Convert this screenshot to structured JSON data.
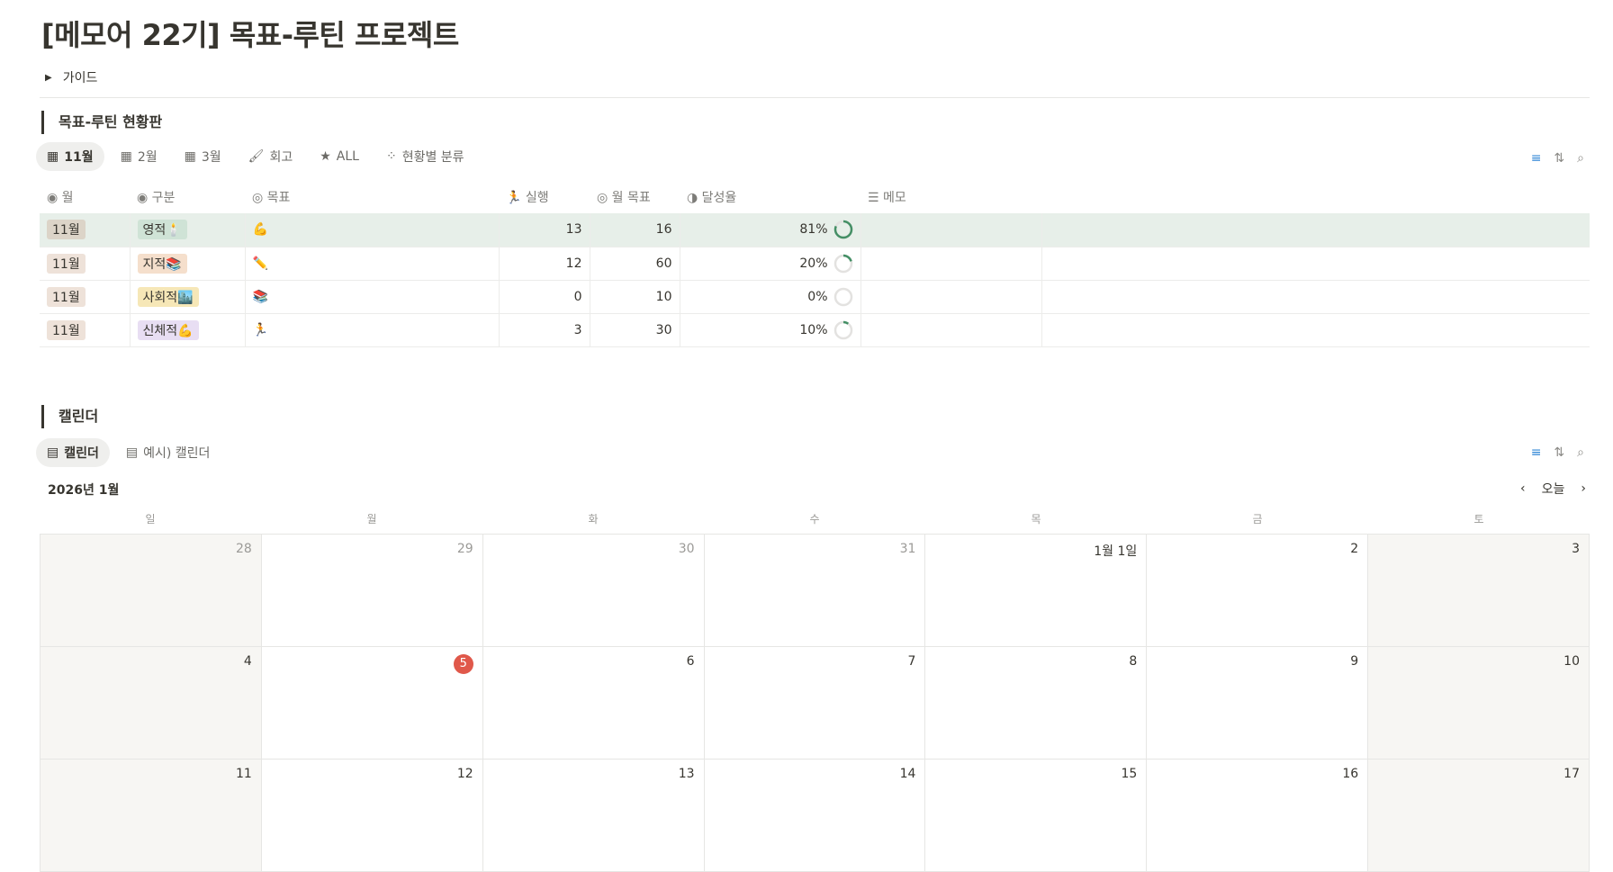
{
  "page": {
    "title": "[메모어 22기] 목표-루틴 프로젝트",
    "guide_label": "가이드"
  },
  "dashboard": {
    "heading": "목표-루틴 현황판",
    "tabs": [
      {
        "icon": "calendar-grid-icon",
        "label": "11월",
        "active": true
      },
      {
        "icon": "calendar-grid-icon",
        "label": "2월"
      },
      {
        "icon": "calendar-grid-icon",
        "label": "3월"
      },
      {
        "icon": "brush-icon",
        "label": "회고"
      },
      {
        "icon": "star-icon",
        "label": "ALL"
      },
      {
        "icon": "loading-icon",
        "label": "현황별 분류"
      }
    ],
    "columns": [
      "월",
      "구분",
      "목표",
      "실행",
      "월 목표",
      "달성율",
      "메모"
    ],
    "rows": [
      {
        "month": "11월",
        "category": "영적🕯️",
        "goal": "💪",
        "done": "13",
        "target": "16",
        "rate": "81%",
        "rate_value": 81,
        "cat_color": "#cfe3d6",
        "highlight": true
      },
      {
        "month": "11월",
        "category": "지적📚",
        "goal": "✏️",
        "done": "12",
        "target": "60",
        "rate": "20%",
        "rate_value": 20,
        "cat_color": "#f5dfcc"
      },
      {
        "month": "11월",
        "category": "사회적🏙️",
        "goal": "📚",
        "done": "0",
        "target": "10",
        "rate": "0%",
        "rate_value": 0,
        "cat_color": "#f6e7b7"
      },
      {
        "month": "11월",
        "category": "신체적💪",
        "goal": "🏃",
        "done": "3",
        "target": "30",
        "rate": "10%",
        "rate_value": 10,
        "cat_color": "#e8def3"
      }
    ],
    "ring_color": "#448f65"
  },
  "calendar": {
    "heading": "캘린더",
    "tabs": [
      {
        "label": "캘린더",
        "active": true
      },
      {
        "label": "예시) 캘린더"
      }
    ],
    "month_label": "2026년 1월",
    "today_label": "오늘",
    "weekdays": [
      "일",
      "월",
      "화",
      "수",
      "목",
      "금",
      "토"
    ],
    "days": [
      {
        "d": "28",
        "out": true
      },
      {
        "d": "29",
        "out": true
      },
      {
        "d": "30",
        "out": true
      },
      {
        "d": "31",
        "out": true
      },
      {
        "d": "1월 1일"
      },
      {
        "d": "2"
      },
      {
        "d": "3"
      },
      {
        "d": "4"
      },
      {
        "d": "5",
        "today": true
      },
      {
        "d": "6"
      },
      {
        "d": "7"
      },
      {
        "d": "8"
      },
      {
        "d": "9"
      },
      {
        "d": "10"
      },
      {
        "d": "11"
      },
      {
        "d": "12"
      },
      {
        "d": "13"
      },
      {
        "d": "14"
      },
      {
        "d": "15"
      },
      {
        "d": "16"
      },
      {
        "d": "17"
      }
    ],
    "today_color": "#e0584a"
  }
}
